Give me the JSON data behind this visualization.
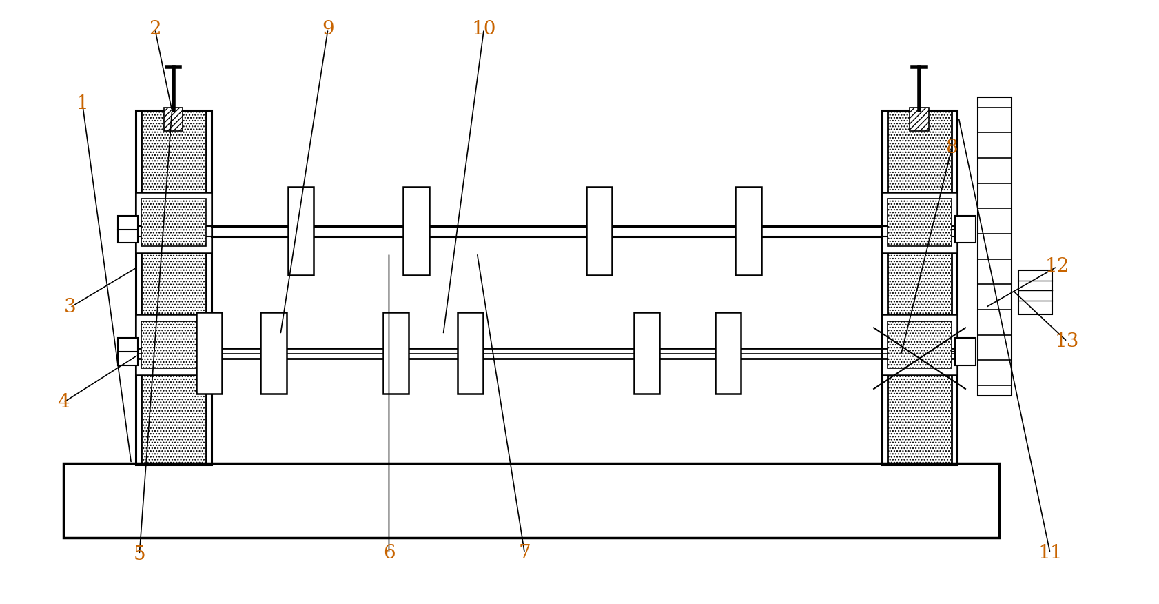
{
  "bg_color": "#ffffff",
  "line_color": "#000000",
  "fig_width": 16.83,
  "fig_height": 8.76,
  "label_color": "#c86400",
  "label_fontsize": 20
}
